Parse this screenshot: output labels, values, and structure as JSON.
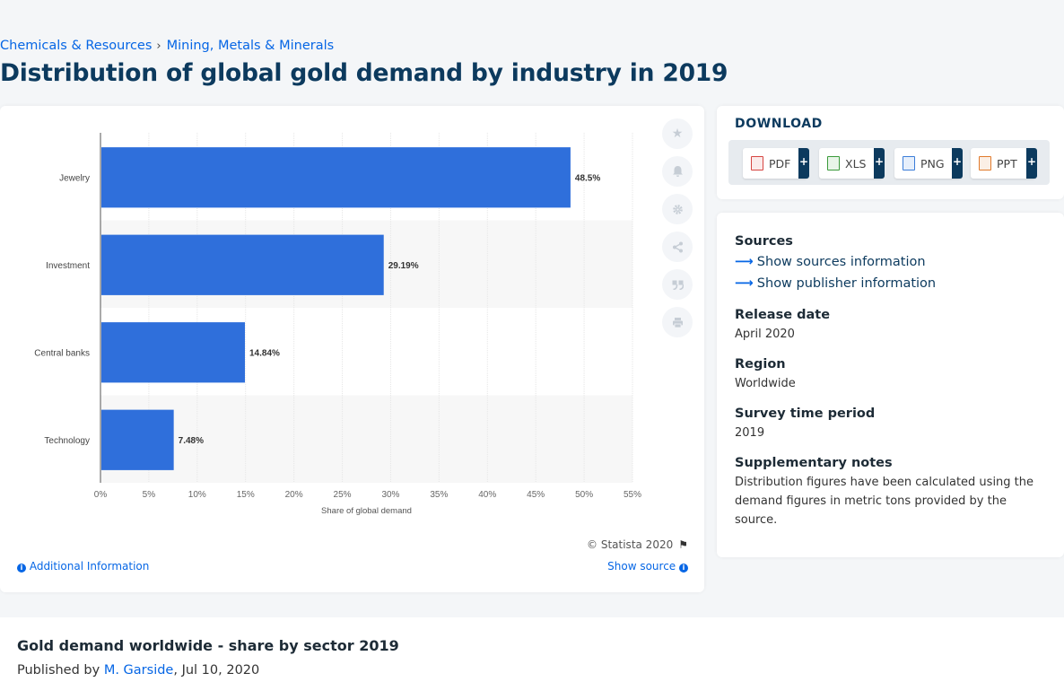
{
  "breadcrumb": {
    "first": "Chemicals & Resources",
    "separator": "›",
    "second": "Mining, Metals & Minerals"
  },
  "page_title": "Distribution of global gold demand by industry in 2019",
  "chart_data": {
    "type": "bar",
    "orientation": "horizontal",
    "categories": [
      "Jewelry",
      "Investment",
      "Central banks",
      "Technology"
    ],
    "values": [
      48.5,
      29.19,
      14.84,
      7.48
    ],
    "value_labels": [
      "48.5%",
      "29.19%",
      "14.84%",
      "7.48%"
    ],
    "xlabel": "Share of global demand",
    "ylabel": "",
    "xlim": [
      0,
      55
    ],
    "xticks": [
      "0%",
      "5%",
      "10%",
      "15%",
      "20%",
      "25%",
      "30%",
      "35%",
      "40%",
      "45%",
      "50%",
      "55%"
    ],
    "grid": true,
    "bar_color": "#2f6fdb"
  },
  "chart_footer": {
    "copyright": "© Statista 2020",
    "additional_info": "Additional Information",
    "show_source": "Show source"
  },
  "side_tools": [
    "star-icon",
    "bell-icon",
    "gear-icon",
    "share-icon",
    "quote-icon",
    "print-icon"
  ],
  "download": {
    "title": "DOWNLOAD",
    "buttons": [
      {
        "label": "PDF",
        "color": "#d64541"
      },
      {
        "label": "XLS",
        "color": "#3a9a3a"
      },
      {
        "label": "PNG",
        "color": "#3b7dd8"
      },
      {
        "label": "PPT",
        "color": "#e07a2c"
      }
    ],
    "plus": "+"
  },
  "info": {
    "sources_heading": "Sources",
    "sources_link": "Show sources information",
    "publisher_link": "Show publisher information",
    "release_heading": "Release date",
    "release_value": "April 2020",
    "region_heading": "Region",
    "region_value": "Worldwide",
    "survey_heading": "Survey time period",
    "survey_value": "2019",
    "notes_heading": "Supplementary notes",
    "notes_value": "Distribution figures have been calculated using the demand figures in metric tons provided by the source."
  },
  "bottom": {
    "title": "Gold demand worldwide - share by sector 2019",
    "published_prefix": "Published by",
    "author": "M. Garside",
    "date": ", Jul 10, 2020"
  }
}
